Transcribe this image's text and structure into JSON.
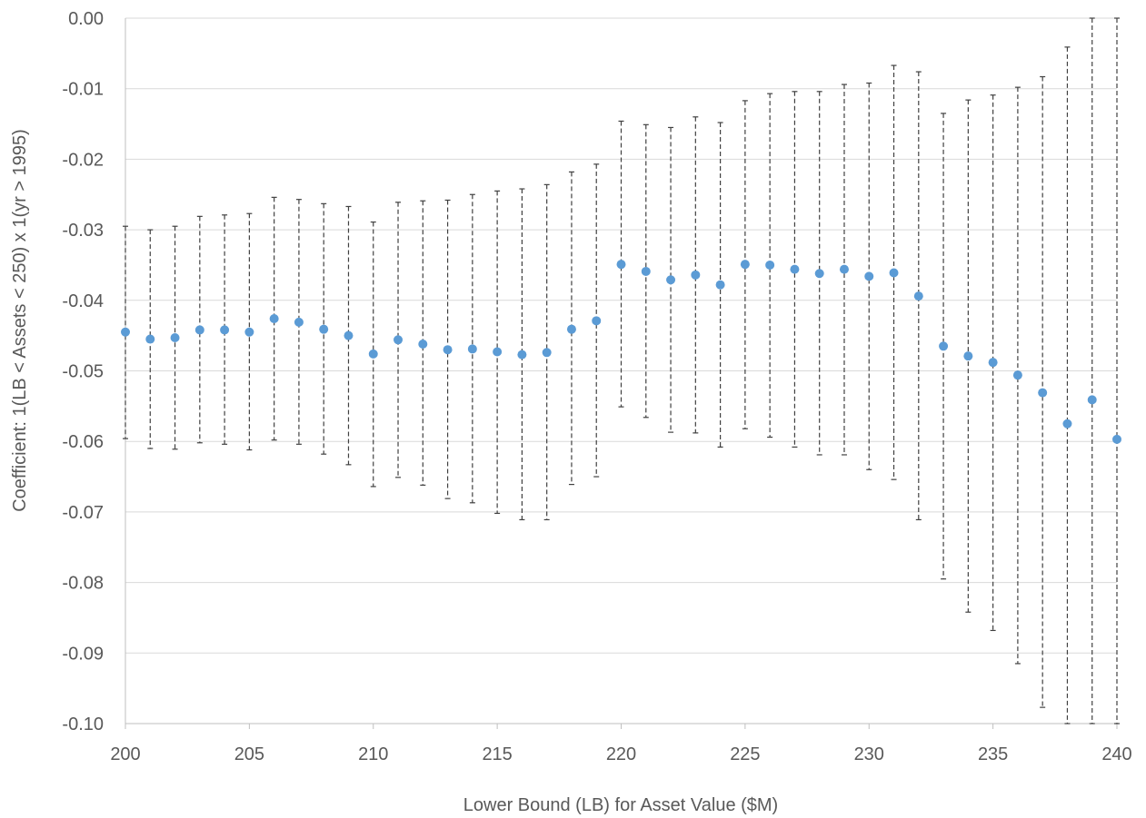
{
  "chart_data": {
    "type": "scatter",
    "title": "",
    "xlabel": "Lower Bound (LB) for Asset Value ($M)",
    "ylabel": "Coefficient: 1(LB < Assets < 250) x 1(yr > 1995)",
    "xlim": [
      200,
      240
    ],
    "ylim": [
      -0.1,
      0.0
    ],
    "x_ticks": [
      "200",
      "205",
      "210",
      "215",
      "220",
      "225",
      "230",
      "235",
      "240"
    ],
    "y_ticks": [
      "0.00",
      "-0.01",
      "-0.02",
      "-0.03",
      "-0.04",
      "-0.05",
      "-0.06",
      "-0.07",
      "-0.08",
      "-0.09",
      "-0.10"
    ],
    "grid": "horizontal",
    "error_bars": "dashed, with caps",
    "point_color": "#5b9bd5",
    "x": [
      200,
      201,
      202,
      203,
      204,
      205,
      206,
      207,
      208,
      209,
      210,
      211,
      212,
      213,
      214,
      215,
      216,
      217,
      218,
      219,
      220,
      221,
      222,
      223,
      224,
      225,
      226,
      227,
      228,
      229,
      230,
      231,
      232,
      233,
      234,
      235,
      236,
      237,
      238,
      239,
      240
    ],
    "y": [
      -0.0445,
      -0.0455,
      -0.0453,
      -0.0442,
      -0.0442,
      -0.0445,
      -0.0426,
      -0.0431,
      -0.0441,
      -0.045,
      -0.0476,
      -0.0456,
      -0.0462,
      -0.047,
      -0.0469,
      -0.0473,
      -0.0477,
      -0.0474,
      -0.0441,
      -0.0429,
      -0.0349,
      -0.0359,
      -0.0371,
      -0.0364,
      -0.0378,
      -0.0349,
      -0.035,
      -0.0356,
      -0.0362,
      -0.0356,
      -0.0366,
      -0.0361,
      -0.0394,
      -0.0465,
      -0.0479,
      -0.0488,
      -0.0506,
      -0.0531,
      -0.0575,
      -0.0541,
      -0.0597
    ],
    "ci_upper": [
      -0.0295,
      -0.03,
      -0.0295,
      -0.0281,
      -0.0279,
      -0.0277,
      -0.0254,
      -0.0257,
      -0.0263,
      -0.0267,
      -0.0289,
      -0.0261,
      -0.0259,
      -0.0258,
      -0.025,
      -0.0245,
      -0.0242,
      -0.0236,
      -0.0218,
      -0.0207,
      -0.0146,
      -0.0151,
      -0.0155,
      -0.014,
      -0.0148,
      -0.0117,
      -0.0107,
      -0.0104,
      -0.0104,
      -0.0094,
      -0.0092,
      -0.0067,
      -0.0076,
      -0.0135,
      -0.0116,
      -0.0109,
      -0.0098,
      -0.0083,
      -0.0041,
      0.0,
      0.0
    ],
    "ci_lower": [
      -0.0596,
      -0.061,
      -0.0611,
      -0.0602,
      -0.0604,
      -0.0612,
      -0.0598,
      -0.0604,
      -0.0618,
      -0.0633,
      -0.0664,
      -0.0651,
      -0.0662,
      -0.0681,
      -0.0687,
      -0.0702,
      -0.0711,
      -0.0711,
      -0.0661,
      -0.065,
      -0.0551,
      -0.0566,
      -0.0587,
      -0.0588,
      -0.0608,
      -0.0582,
      -0.0594,
      -0.0608,
      -0.0619,
      -0.0619,
      -0.064,
      -0.0654,
      -0.0711,
      -0.0795,
      -0.0842,
      -0.0868,
      -0.0915,
      -0.0977,
      -0.1,
      -0.1,
      -0.1
    ]
  }
}
